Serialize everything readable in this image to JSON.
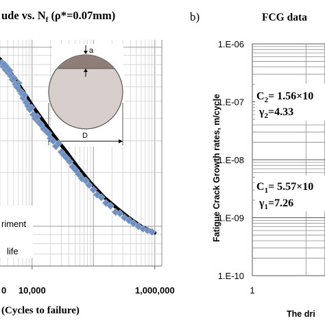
{
  "panel_a": {
    "title": "ude vs. N",
    "title_sub": "f",
    "title_rest": " (ρ*=0.07mm)",
    "xlabel": "(Cycles to failure)",
    "inset": {
      "label_a": "a",
      "label_D": "D"
    },
    "legend": [
      {
        "label": "riment"
      },
      {
        "label": "life"
      }
    ],
    "colors": {
      "experiment": "#6b8fc8",
      "experiment_edge": "#9aa7b7",
      "predicted": "#000000",
      "section_fill": "#d8cfcc",
      "crack_fill": "#8e7d78"
    }
  },
  "panel_b": {
    "letter": "b)",
    "title": "FCG data",
    "ylabel": "Fatigue Crack Growth rates, m/cycle",
    "xlabel": "The dri",
    "annotations": [
      {
        "line1": "C",
        "sub1": "2",
        "rest1": "= 1.56×10",
        "line2": "γ",
        "sub2": "2",
        "rest2": "=4.33"
      },
      {
        "line1": "C",
        "sub1": "1",
        "rest1": "= 5.57×10",
        "line2": "γ",
        "sub2": "1",
        "rest2": "=7.26"
      }
    ]
  },
  "chart_data": [
    {
      "type": "scatter",
      "x_scale": "log",
      "xlim": [
        3000,
        1300000
      ],
      "xticks": [
        {
          "value": 10000,
          "label": "10,000"
        },
        {
          "value": 1000000,
          "label": "1,000,000"
        }
      ],
      "x_tick_partial": "0",
      "series": [
        {
          "name": "riment",
          "marker": "diamond",
          "points": [
            [
              3200,
              0.82
            ],
            [
              3400,
              0.78
            ],
            [
              3550,
              0.8
            ],
            [
              3700,
              0.75
            ],
            [
              3900,
              0.77
            ],
            [
              4100,
              0.72
            ],
            [
              4300,
              0.74
            ],
            [
              4550,
              0.69
            ],
            [
              4800,
              0.66
            ],
            [
              5100,
              0.67
            ],
            [
              5400,
              0.62
            ],
            [
              5700,
              0.6
            ],
            [
              6000,
              0.63
            ],
            [
              6400,
              0.57
            ],
            [
              6800,
              0.55
            ],
            [
              7200,
              0.52
            ],
            [
              7600,
              0.54
            ],
            [
              8100,
              0.49
            ],
            [
              8600,
              0.47
            ],
            [
              9200,
              0.45
            ],
            [
              9800,
              0.46
            ],
            [
              10500,
              0.42
            ],
            [
              11300,
              0.4
            ],
            [
              12200,
              0.41
            ],
            [
              13000,
              0.38
            ],
            [
              14000,
              0.37
            ],
            [
              15500,
              0.35
            ],
            [
              17000,
              0.34
            ],
            [
              18500,
              0.33
            ],
            [
              20000,
              0.31
            ],
            [
              22000,
              0.3
            ],
            [
              24500,
              0.28
            ],
            [
              27000,
              0.29
            ],
            [
              30000,
              0.26
            ],
            [
              33000,
              0.25
            ],
            [
              37000,
              0.24
            ],
            [
              41000,
              0.23
            ],
            [
              46000,
              0.215
            ],
            [
              52000,
              0.205
            ],
            [
              58000,
              0.195
            ],
            [
              65000,
              0.185
            ],
            [
              75000,
              0.18
            ],
            [
              85000,
              0.17
            ],
            [
              100000,
              0.16
            ],
            [
              115000,
              0.15
            ],
            [
              135000,
              0.145
            ],
            [
              160000,
              0.135
            ],
            [
              190000,
              0.13
            ],
            [
              230000,
              0.12
            ],
            [
              270000,
              0.118
            ],
            [
              320000,
              0.112
            ],
            [
              380000,
              0.108
            ],
            [
              450000,
              0.104
            ],
            [
              540000,
              0.1
            ],
            [
              640000,
              0.097
            ],
            [
              760000,
              0.095
            ],
            [
              900000,
              0.093
            ]
          ]
        },
        {
          "name": "life",
          "marker": "line",
          "points": [
            [
              3000,
              0.86
            ],
            [
              4000,
              0.76
            ],
            [
              5500,
              0.65
            ],
            [
              7500,
              0.555
            ],
            [
              10000,
              0.475
            ],
            [
              15000,
              0.39
            ],
            [
              22000,
              0.325
            ],
            [
              35000,
              0.265
            ],
            [
              55000,
              0.215
            ],
            [
              90000,
              0.175
            ],
            [
              150000,
              0.145
            ],
            [
              250000,
              0.125
            ],
            [
              400000,
              0.11
            ],
            [
              600000,
              0.1
            ],
            [
              1000000,
              0.092
            ]
          ]
        }
      ]
    },
    {
      "type": "line",
      "y_scale": "log",
      "ylim": [
        1e-10,
        1e-06
      ],
      "yticks": [
        {
          "value": 1e-06,
          "label": "1.E-06"
        },
        {
          "value": 1e-07,
          "label": "1.E-07"
        },
        {
          "value": 1e-08,
          "label": "1.E-08"
        },
        {
          "value": 1e-09,
          "label": "1.E-09"
        },
        {
          "value": 1e-10,
          "label": "1.E-10"
        }
      ],
      "x_scale": "log",
      "xticks": [
        {
          "value": 1,
          "label": "1"
        }
      ]
    }
  ]
}
